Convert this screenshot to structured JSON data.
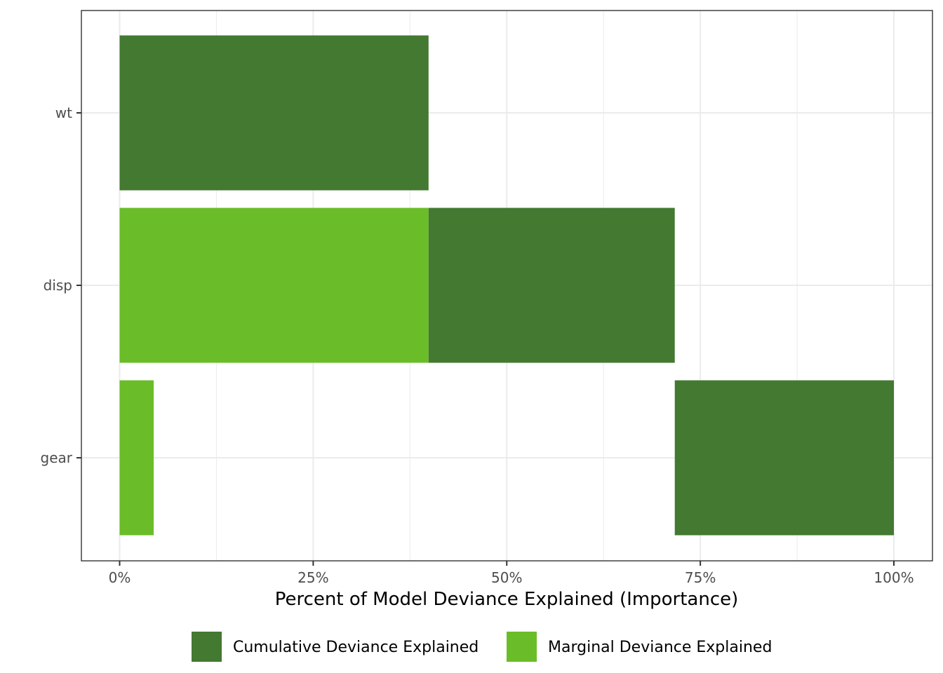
{
  "chart_data": {
    "type": "bar",
    "orientation": "horizontal",
    "xlabel": "Percent of Model Deviance Explained (Importance)",
    "ylabel": "",
    "xlim": [
      0,
      1
    ],
    "x_ticks": [
      0,
      0.25,
      0.5,
      0.75,
      1.0
    ],
    "x_tick_labels": [
      "0%",
      "25%",
      "50%",
      "75%",
      "100%"
    ],
    "categories": [
      "wt",
      "disp",
      "gear"
    ],
    "bars": [
      {
        "category": "wt",
        "series": "Cumulative Deviance Explained",
        "start": 0,
        "end": 0.399
      },
      {
        "category": "disp",
        "series": "Marginal Deviance Explained",
        "start": 0,
        "end": 0.399
      },
      {
        "category": "disp",
        "series": "Cumulative Deviance Explained",
        "start": 0.399,
        "end": 0.717
      },
      {
        "category": "gear",
        "series": "Marginal Deviance Explained",
        "start": 0,
        "end": 0.044
      },
      {
        "category": "gear",
        "series": "Cumulative Deviance Explained",
        "start": 0.717,
        "end": 1.0
      }
    ],
    "series": [
      {
        "name": "Cumulative Deviance Explained",
        "color": "#437931"
      },
      {
        "name": "Marginal Deviance Explained",
        "color": "#6abd28"
      }
    ],
    "grid": true,
    "legend_position": "bottom"
  }
}
